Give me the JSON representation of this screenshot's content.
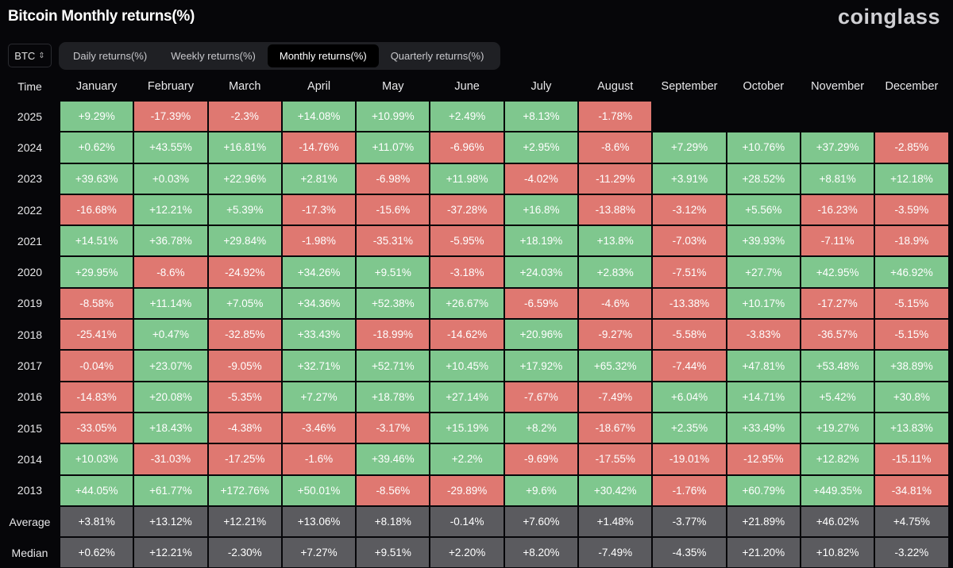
{
  "title": "Bitcoin Monthly returns(%)",
  "logo": "coinglass",
  "coin_select": {
    "value": "BTC"
  },
  "tabs": [
    {
      "label": "Daily returns(%)",
      "active": false
    },
    {
      "label": "Weekly returns(%)",
      "active": false
    },
    {
      "label": "Monthly returns(%)",
      "active": true
    },
    {
      "label": "Quarterly returns(%)",
      "active": false
    }
  ],
  "colors": {
    "positive": "#7fc78e",
    "negative": "#df7871",
    "stat": "#5b5b5f"
  },
  "table": {
    "time_header": "Time",
    "months": [
      "January",
      "February",
      "March",
      "April",
      "May",
      "June",
      "July",
      "August",
      "September",
      "October",
      "November",
      "December"
    ],
    "rows": [
      {
        "label": "2025",
        "values": [
          "+9.29%",
          "-17.39%",
          "-2.3%",
          "+14.08%",
          "+10.99%",
          "+2.49%",
          "+8.13%",
          "-1.78%",
          "",
          "",
          "",
          ""
        ]
      },
      {
        "label": "2024",
        "values": [
          "+0.62%",
          "+43.55%",
          "+16.81%",
          "-14.76%",
          "+11.07%",
          "-6.96%",
          "+2.95%",
          "-8.6%",
          "+7.29%",
          "+10.76%",
          "+37.29%",
          "-2.85%"
        ]
      },
      {
        "label": "2023",
        "values": [
          "+39.63%",
          "+0.03%",
          "+22.96%",
          "+2.81%",
          "-6.98%",
          "+11.98%",
          "-4.02%",
          "-11.29%",
          "+3.91%",
          "+28.52%",
          "+8.81%",
          "+12.18%"
        ]
      },
      {
        "label": "2022",
        "values": [
          "-16.68%",
          "+12.21%",
          "+5.39%",
          "-17.3%",
          "-15.6%",
          "-37.28%",
          "+16.8%",
          "-13.88%",
          "-3.12%",
          "+5.56%",
          "-16.23%",
          "-3.59%"
        ]
      },
      {
        "label": "2021",
        "values": [
          "+14.51%",
          "+36.78%",
          "+29.84%",
          "-1.98%",
          "-35.31%",
          "-5.95%",
          "+18.19%",
          "+13.8%",
          "-7.03%",
          "+39.93%",
          "-7.11%",
          "-18.9%"
        ]
      },
      {
        "label": "2020",
        "values": [
          "+29.95%",
          "-8.6%",
          "-24.92%",
          "+34.26%",
          "+9.51%",
          "-3.18%",
          "+24.03%",
          "+2.83%",
          "-7.51%",
          "+27.7%",
          "+42.95%",
          "+46.92%"
        ]
      },
      {
        "label": "2019",
        "values": [
          "-8.58%",
          "+11.14%",
          "+7.05%",
          "+34.36%",
          "+52.38%",
          "+26.67%",
          "-6.59%",
          "-4.6%",
          "-13.38%",
          "+10.17%",
          "-17.27%",
          "-5.15%"
        ]
      },
      {
        "label": "2018",
        "values": [
          "-25.41%",
          "+0.47%",
          "-32.85%",
          "+33.43%",
          "-18.99%",
          "-14.62%",
          "+20.96%",
          "-9.27%",
          "-5.58%",
          "-3.83%",
          "-36.57%",
          "-5.15%"
        ]
      },
      {
        "label": "2017",
        "values": [
          "-0.04%",
          "+23.07%",
          "-9.05%",
          "+32.71%",
          "+52.71%",
          "+10.45%",
          "+17.92%",
          "+65.32%",
          "-7.44%",
          "+47.81%",
          "+53.48%",
          "+38.89%"
        ]
      },
      {
        "label": "2016",
        "values": [
          "-14.83%",
          "+20.08%",
          "-5.35%",
          "+7.27%",
          "+18.78%",
          "+27.14%",
          "-7.67%",
          "-7.49%",
          "+6.04%",
          "+14.71%",
          "+5.42%",
          "+30.8%"
        ]
      },
      {
        "label": "2015",
        "values": [
          "-33.05%",
          "+18.43%",
          "-4.38%",
          "-3.46%",
          "-3.17%",
          "+15.19%",
          "+8.2%",
          "-18.67%",
          "+2.35%",
          "+33.49%",
          "+19.27%",
          "+13.83%"
        ]
      },
      {
        "label": "2014",
        "values": [
          "+10.03%",
          "-31.03%",
          "-17.25%",
          "-1.6%",
          "+39.46%",
          "+2.2%",
          "-9.69%",
          "-17.55%",
          "-19.01%",
          "-12.95%",
          "+12.82%",
          "-15.11%"
        ]
      },
      {
        "label": "2013",
        "values": [
          "+44.05%",
          "+61.77%",
          "+172.76%",
          "+50.01%",
          "-8.56%",
          "-29.89%",
          "+9.6%",
          "+30.42%",
          "-1.76%",
          "+60.79%",
          "+449.35%",
          "-34.81%"
        ]
      }
    ],
    "stats": [
      {
        "label": "Average",
        "values": [
          "+3.81%",
          "+13.12%",
          "+12.21%",
          "+13.06%",
          "+8.18%",
          "-0.14%",
          "+7.60%",
          "+1.48%",
          "-3.77%",
          "+21.89%",
          "+46.02%",
          "+4.75%"
        ]
      },
      {
        "label": "Median",
        "values": [
          "+0.62%",
          "+12.21%",
          "-2.30%",
          "+7.27%",
          "+9.51%",
          "+2.20%",
          "+8.20%",
          "-7.49%",
          "-4.35%",
          "+21.20%",
          "+10.82%",
          "-3.22%"
        ]
      }
    ]
  }
}
